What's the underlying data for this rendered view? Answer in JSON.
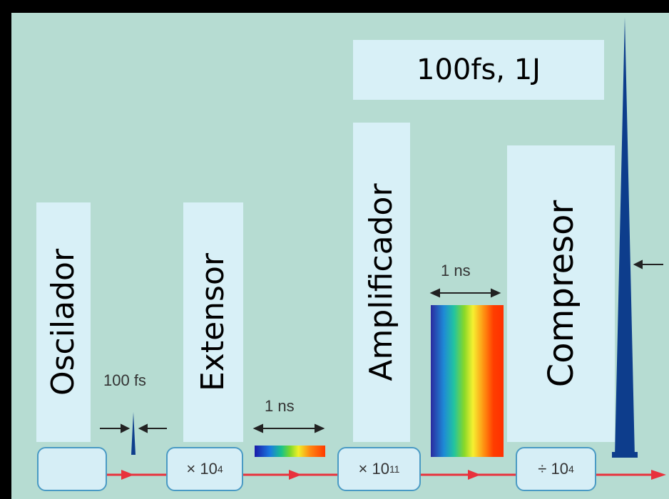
{
  "labels": {
    "oscillator": "Oscilador",
    "stretcher": "Extensor",
    "amplifier": "Amplificador",
    "compressor": "Compresor"
  },
  "output_pulse": "100fs, 1J",
  "pulse_widths": {
    "input": "100 fs",
    "stretched": "1 ns",
    "amplified": "1 ns"
  },
  "stages": {
    "stretcher_factor": "× 10",
    "stretcher_exp": "4",
    "amplifier_factor": "× 10",
    "amplifier_exp": "11",
    "compressor_factor": "÷ 10",
    "compressor_exp": "4"
  },
  "colors": {
    "beam": "#e8323c",
    "pulse": "#0d3d8c",
    "box_border": "#4a9ac4",
    "label_bg": "#d8f0f7",
    "panel_bg": "#b6dcd2"
  }
}
